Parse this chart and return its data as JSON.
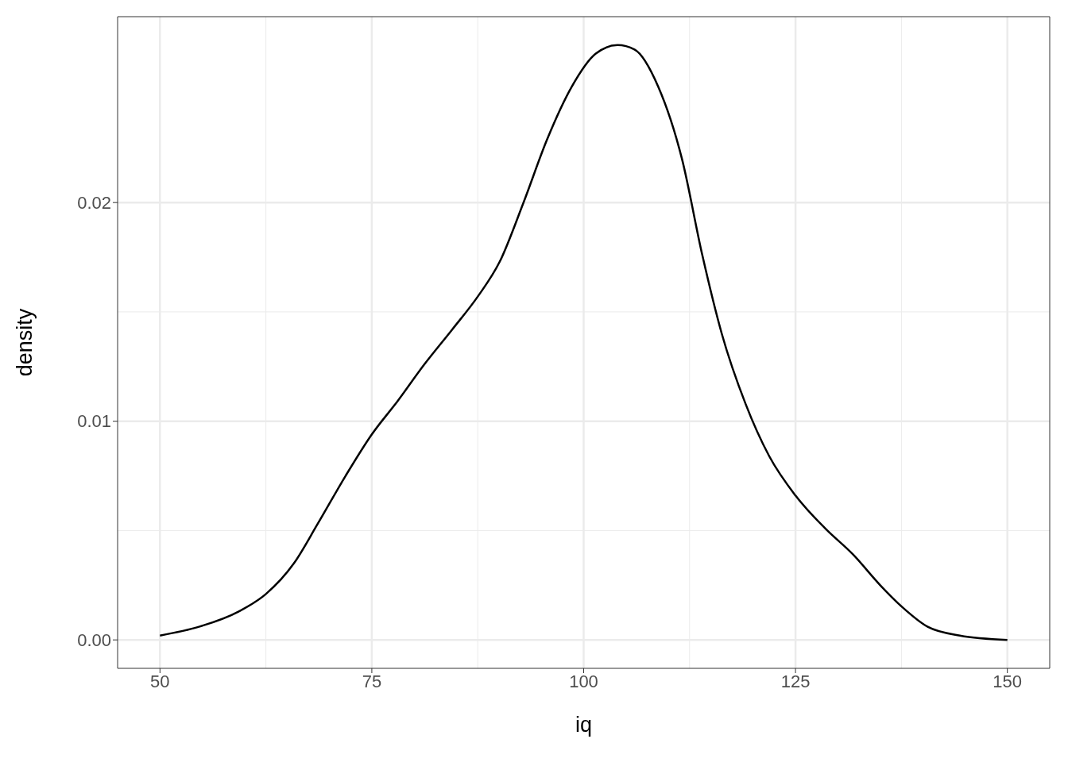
{
  "chart_data": {
    "type": "line",
    "xlabel": "iq",
    "ylabel": "density",
    "x": [
      50,
      54.6,
      59.3,
      62.5,
      65.8,
      68.6,
      71.9,
      75,
      78,
      81.2,
      84.5,
      87.5,
      90.1,
      92.9,
      95.7,
      98.6,
      101.4,
      104,
      106,
      108.8,
      111.6,
      114,
      116.3,
      119.1,
      121.9,
      125,
      128.5,
      131.8,
      135,
      137.6,
      140.6,
      144.4,
      150
    ],
    "series": [
      {
        "color": "#000000",
        "values": [
          0.0002,
          0.0006,
          0.0013,
          0.0021,
          0.0035,
          0.0053,
          0.0075,
          0.0094,
          0.0109,
          0.0126,
          0.0142,
          0.0157,
          0.0173,
          0.02,
          0.0229,
          0.0253,
          0.0268,
          0.0272,
          0.027,
          0.0253,
          0.022,
          0.0176,
          0.014,
          0.0108,
          0.0084,
          0.0066,
          0.0051,
          0.0039,
          0.0025,
          0.0015,
          0.0006,
          0.0002,
          0.0
        ]
      }
    ],
    "xlim": [
      45,
      155
    ],
    "xticks": [
      50,
      75,
      100,
      125,
      150
    ],
    "ylim": [
      -0.0013,
      0.0285
    ],
    "yticks": [
      {
        "value": 0,
        "label": "0.00"
      },
      {
        "value": 0.01,
        "label": "0.01"
      },
      {
        "value": 0.02,
        "label": "0.02"
      }
    ],
    "grid": true
  }
}
